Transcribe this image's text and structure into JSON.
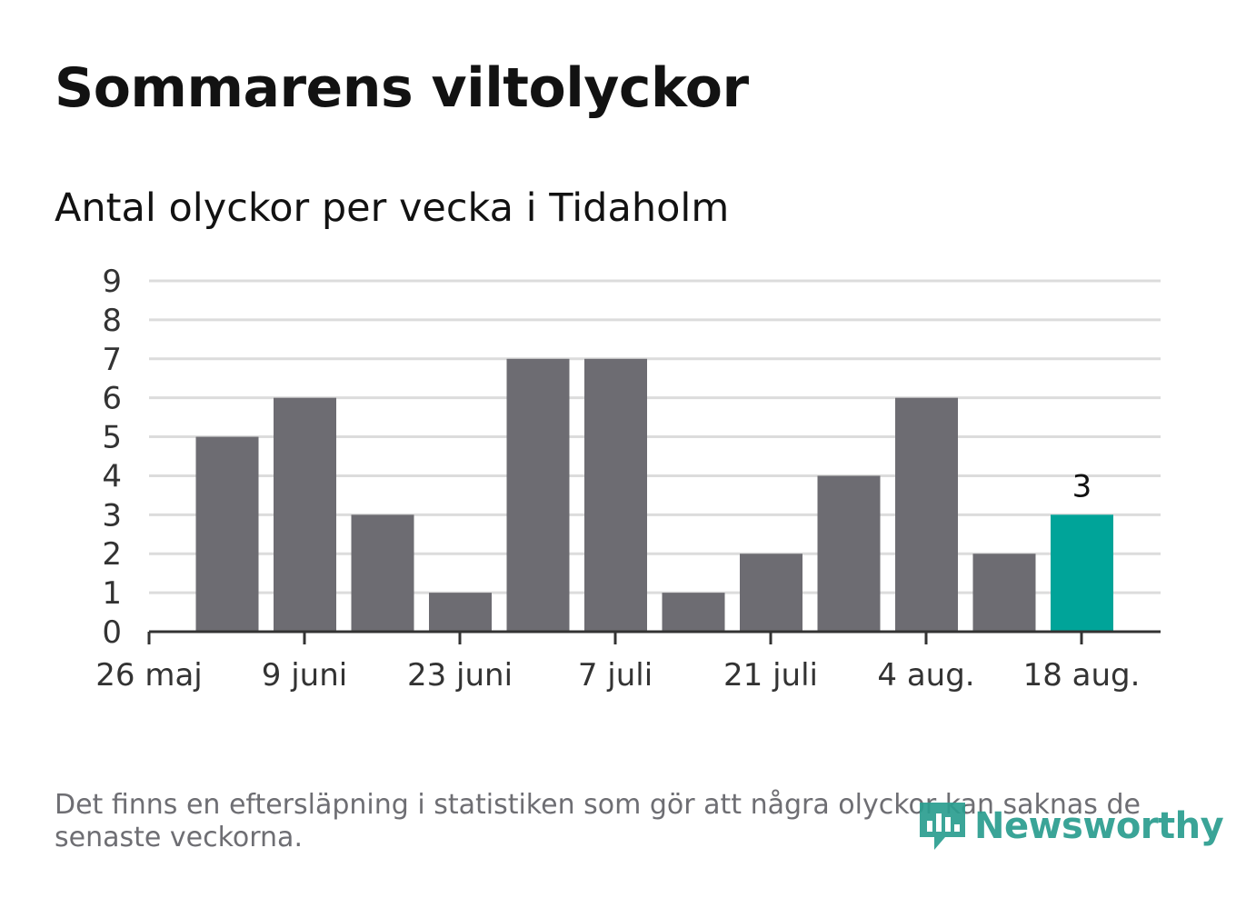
{
  "title": "Sommarens viltolyckor",
  "subtitle": "Antal olyckor per vecka i Tidaholm",
  "footnote": "Det finns en eftersläpning i statistiken som gör att några olyckor kan saknas de senaste veckorna.",
  "brand": {
    "name": "Newsworthy",
    "icon": "newsworthy-logo-icon",
    "color": "#2a9d8f"
  },
  "colors": {
    "bar": "#6d6c72",
    "highlight": "#00a499",
    "grid": "#dcdcdc",
    "axis": "#333333",
    "text": "#121212",
    "muted": "#6e6e73"
  },
  "chart_data": {
    "type": "bar",
    "title": "Sommarens viltolyckor",
    "subtitle": "Antal olyckor per vecka i Tidaholm",
    "x_tick_labels": [
      "26 maj",
      "9 juni",
      "23 juni",
      "7 juli",
      "21 juli",
      "4 aug.",
      "18 aug."
    ],
    "y_ticks": [
      0,
      1,
      2,
      3,
      4,
      5,
      6,
      7,
      8,
      9
    ],
    "ylim": [
      0,
      9
    ],
    "grid": true,
    "values": [
      5,
      6,
      3,
      1,
      7,
      7,
      1,
      2,
      4,
      6,
      2,
      3
    ],
    "highlight_index": 11,
    "highlight_label": "3"
  }
}
